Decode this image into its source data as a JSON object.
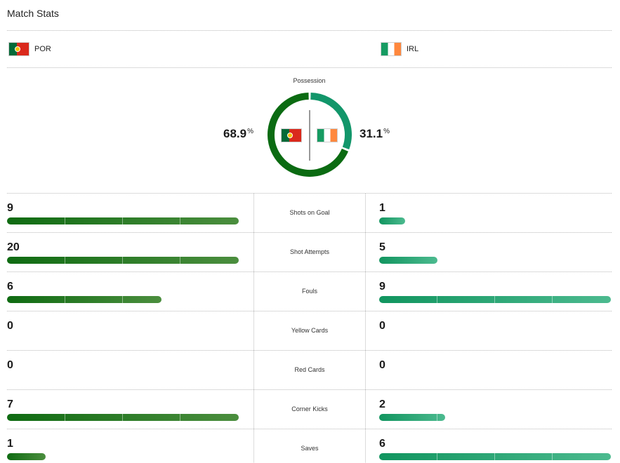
{
  "title": "Match Stats",
  "teams": {
    "home": {
      "code": "POR",
      "flag_icon": "portugal-flag-icon",
      "color": "#0b6b12"
    },
    "away": {
      "code": "IRL",
      "flag_icon": "ireland-flag-icon",
      "color": "#12966a"
    }
  },
  "possession": {
    "label": "Possession",
    "home_value": "68.9",
    "away_value": "31.1",
    "unit": "%"
  },
  "stats": [
    {
      "label": "Shots on Goal",
      "home": "9",
      "away": "1",
      "home_fraction": 1.0,
      "away_fraction": 0.111
    },
    {
      "label": "Shot Attempts",
      "home": "20",
      "away": "5",
      "home_fraction": 1.0,
      "away_fraction": 0.25
    },
    {
      "label": "Fouls",
      "home": "6",
      "away": "9",
      "home_fraction": 0.667,
      "away_fraction": 1.0
    },
    {
      "label": "Yellow Cards",
      "home": "0",
      "away": "0",
      "home_fraction": 0,
      "away_fraction": 0
    },
    {
      "label": "Red Cards",
      "home": "0",
      "away": "0",
      "home_fraction": 0,
      "away_fraction": 0
    },
    {
      "label": "Corner Kicks",
      "home": "7",
      "away": "2",
      "home_fraction": 1.0,
      "away_fraction": 0.286
    },
    {
      "label": "Saves",
      "home": "1",
      "away": "6",
      "home_fraction": 0.167,
      "away_fraction": 1.0
    }
  ]
}
